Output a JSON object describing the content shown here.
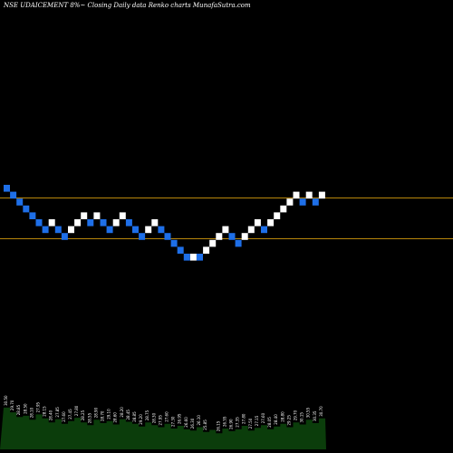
{
  "header": {
    "text": "NSE UDAICEMENT 8%~  Closing Daily data  Renko  charts MunafaSutra.com"
  },
  "colors": {
    "background": "#000000",
    "up_brick": "#ffffff",
    "down_brick": "#1e6fe8",
    "level_line": "#b8860b",
    "volume_fill": "#0b3d0b"
  },
  "chart_data": {
    "type": "renko",
    "brick_size_percent": 8,
    "levels": [
      30.5,
      27.5
    ],
    "bricks": [
      {
        "dir": "down",
        "top": 31.4,
        "bottom": 30.9
      },
      {
        "dir": "down",
        "top": 30.9,
        "bottom": 30.4
      },
      {
        "dir": "down",
        "top": 30.4,
        "bottom": 29.9
      },
      {
        "dir": "down",
        "top": 29.9,
        "bottom": 29.4
      },
      {
        "dir": "down",
        "top": 29.4,
        "bottom": 28.9
      },
      {
        "dir": "down",
        "top": 28.9,
        "bottom": 28.4
      },
      {
        "dir": "down",
        "top": 28.4,
        "bottom": 27.9
      },
      {
        "dir": "up",
        "top": 28.9,
        "bottom": 28.4
      },
      {
        "dir": "down",
        "top": 28.4,
        "bottom": 27.9
      },
      {
        "dir": "down",
        "top": 27.9,
        "bottom": 27.4
      },
      {
        "dir": "up",
        "top": 28.4,
        "bottom": 27.9
      },
      {
        "dir": "up",
        "top": 28.9,
        "bottom": 28.4
      },
      {
        "dir": "up",
        "top": 29.4,
        "bottom": 28.9
      },
      {
        "dir": "down",
        "top": 28.9,
        "bottom": 28.4
      },
      {
        "dir": "up",
        "top": 29.4,
        "bottom": 28.9
      },
      {
        "dir": "down",
        "top": 28.9,
        "bottom": 28.4
      },
      {
        "dir": "down",
        "top": 28.4,
        "bottom": 27.9
      },
      {
        "dir": "up",
        "top": 28.9,
        "bottom": 28.4
      },
      {
        "dir": "up",
        "top": 29.4,
        "bottom": 28.9
      },
      {
        "dir": "down",
        "top": 28.9,
        "bottom": 28.4
      },
      {
        "dir": "down",
        "top": 28.4,
        "bottom": 27.9
      },
      {
        "dir": "down",
        "top": 27.9,
        "bottom": 27.4
      },
      {
        "dir": "up",
        "top": 28.4,
        "bottom": 27.9
      },
      {
        "dir": "up",
        "top": 28.9,
        "bottom": 28.4
      },
      {
        "dir": "down",
        "top": 28.4,
        "bottom": 27.9
      },
      {
        "dir": "down",
        "top": 27.9,
        "bottom": 27.4
      },
      {
        "dir": "down",
        "top": 27.4,
        "bottom": 26.9
      },
      {
        "dir": "down",
        "top": 26.9,
        "bottom": 26.4
      },
      {
        "dir": "down",
        "top": 26.4,
        "bottom": 25.9
      },
      {
        "dir": "up",
        "top": 26.4,
        "bottom": 25.9
      },
      {
        "dir": "down",
        "top": 26.4,
        "bottom": 25.9
      },
      {
        "dir": "up",
        "top": 26.9,
        "bottom": 26.4
      },
      {
        "dir": "up",
        "top": 27.4,
        "bottom": 26.9
      },
      {
        "dir": "up",
        "top": 27.9,
        "bottom": 27.4
      },
      {
        "dir": "up",
        "top": 28.4,
        "bottom": 27.9
      },
      {
        "dir": "down",
        "top": 27.9,
        "bottom": 27.4
      },
      {
        "dir": "down",
        "top": 27.4,
        "bottom": 26.9
      },
      {
        "dir": "up",
        "top": 27.9,
        "bottom": 27.4
      },
      {
        "dir": "up",
        "top": 28.4,
        "bottom": 27.9
      },
      {
        "dir": "up",
        "top": 28.9,
        "bottom": 28.4
      },
      {
        "dir": "down",
        "top": 28.4,
        "bottom": 27.9
      },
      {
        "dir": "up",
        "top": 28.9,
        "bottom": 28.4
      },
      {
        "dir": "up",
        "top": 29.4,
        "bottom": 28.9
      },
      {
        "dir": "up",
        "top": 29.9,
        "bottom": 29.4
      },
      {
        "dir": "up",
        "top": 30.4,
        "bottom": 29.9
      },
      {
        "dir": "up",
        "top": 30.9,
        "bottom": 30.4
      },
      {
        "dir": "down",
        "top": 30.4,
        "bottom": 29.9
      },
      {
        "dir": "up",
        "top": 30.9,
        "bottom": 30.4
      },
      {
        "dir": "down",
        "top": 30.4,
        "bottom": 29.9
      },
      {
        "dir": "up",
        "top": 30.9,
        "bottom": 30.4
      }
    ],
    "volume_labels": [
      "30.50",
      "29.70",
      "28.85",
      "28.50",
      "28.10",
      "27.95",
      "28.15",
      "28.40",
      "27.85",
      "27.60",
      "27.45",
      "27.80",
      "28.25",
      "28.55",
      "28.90",
      "28.70",
      "29.10",
      "28.60",
      "28.20",
      "28.45",
      "28.85",
      "29.20",
      "28.75",
      "28.30",
      "27.95",
      "27.60",
      "27.30",
      "26.95",
      "26.60",
      "26.30",
      "26.10",
      "25.85",
      "",
      "26.15",
      "26.55",
      "26.90",
      "27.35",
      "27.80",
      "27.50",
      "27.15",
      "27.60",
      "28.05",
      "28.40",
      "28.80",
      "29.25",
      "29.70",
      "30.15",
      "30.55",
      "30.35",
      "30.70"
    ],
    "volume": [
      62,
      55,
      48,
      50,
      44,
      52,
      46,
      40,
      45,
      38,
      42,
      47,
      40,
      36,
      44,
      39,
      42,
      37,
      45,
      41,
      38,
      34,
      40,
      36,
      33,
      38,
      31,
      35,
      30,
      28,
      33,
      26,
      29,
      24,
      31,
      27,
      30,
      35,
      28,
      32,
      36,
      30,
      34,
      38,
      33,
      40,
      37,
      44,
      39,
      46
    ]
  }
}
